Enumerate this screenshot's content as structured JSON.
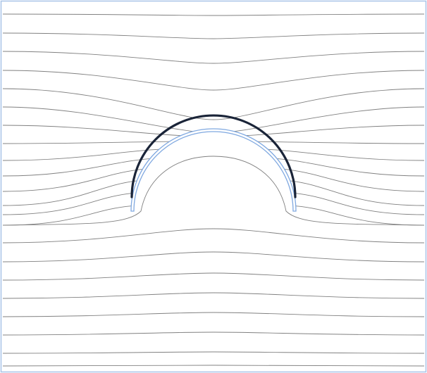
{
  "figure": {
    "kind": "magnetic-field-lines-around-half-shell",
    "frame_color": "#a8c4e8",
    "line_color": "#808080",
    "shell_color": "#1a2438",
    "shell_outline_color": "#7fa8e0",
    "field_line_count": 21
  }
}
